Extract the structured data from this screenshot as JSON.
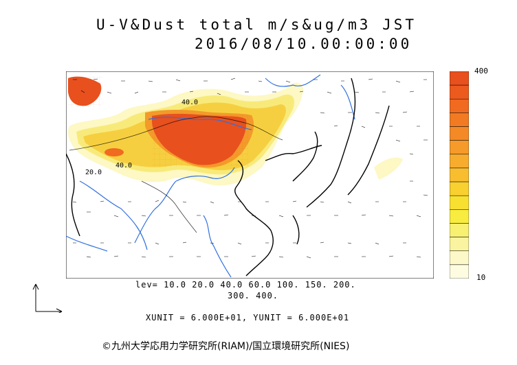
{
  "title_line1": "U-V&Dust total m/s&ug/m3 JST",
  "title_line2": "2016/08/10.00:00:00",
  "levels_line1": "lev= 10.0 20.0 40.0 60.0 100. 150. 200.",
  "levels_line2": "300. 400.",
  "unit_line": "XUNIT = 6.000E+01, YUNIT = 6.000E+01",
  "colorbar": {
    "top_label": "400",
    "bottom_label": "10",
    "colors": [
      "#e8501e",
      "#ec5a1e",
      "#f06a20",
      "#f27a22",
      "#f48a26",
      "#f69a2a",
      "#f8ac2e",
      "#f8be30",
      "#f8d030",
      "#f8e030",
      "#f8ec40",
      "#f8f070",
      "#faf4a0",
      "#fcf8c8",
      "#fefce0"
    ]
  },
  "contour_labels": [
    "40.0",
    "40.0",
    "20.0"
  ],
  "credit": "©九州大学応用力学研究所(RIAM)/国立環境研究所(NIES)",
  "colors": {
    "land": "#000000",
    "river": "#3070e0",
    "dust_high": "#e8501e",
    "dust_low": "#f8f0b0"
  }
}
